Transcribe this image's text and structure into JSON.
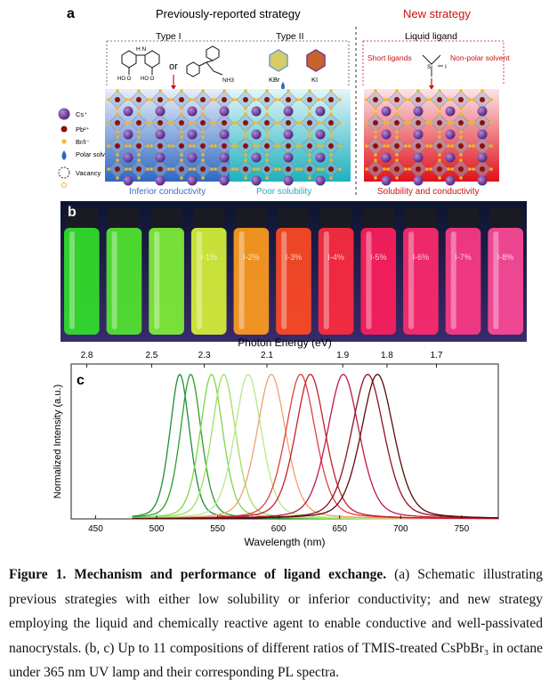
{
  "panel_a": {
    "letter": "a",
    "previous_title": "Previously-reported strategy",
    "new_title": "New strategy",
    "type1": "Type I",
    "type2": "Type II",
    "or_text": "or",
    "kbr": "KBr",
    "ki": "KI",
    "liquid_ligand": "Liquid ligand",
    "short_ligands": "Short ligands",
    "nonpolar_solvent": "Non-polar solvent",
    "si_label": "Si",
    "i_label": "I",
    "hn_label": "H\nN",
    "nh3_label": "NH3",
    "legend": {
      "cs": "Cs⁺",
      "pb": "Pb²⁺",
      "br": "Br/I⁻",
      "polar_solvent": "Polar solvent",
      "vacancy": "Vacancy"
    },
    "inferior_conductivity": "Inferior conductivity",
    "poor_solubility": "Poor solubility",
    "solubility_conductivity": "Solubility and conductivity",
    "colors": {
      "title_new": "#cc1111",
      "inferior": "#3a6fc4",
      "poor": "#2aa7b8",
      "sol": "#cc1111"
    }
  },
  "panel_b": {
    "letter": "b",
    "vials": [
      {
        "color": "#33e02a",
        "label": ""
      },
      {
        "color": "#52e62f",
        "label": ""
      },
      {
        "color": "#7ff037",
        "label": ""
      },
      {
        "color": "#d7f23a",
        "label": "I-1%"
      },
      {
        "color": "#ff9c1e",
        "label": "I-2%"
      },
      {
        "color": "#ff4a23",
        "label": "I-3%"
      },
      {
        "color": "#ff2b3f",
        "label": "I-4%"
      },
      {
        "color": "#ff1e5c",
        "label": "I-5%"
      },
      {
        "color": "#ff2a6e",
        "label": "I-6%"
      },
      {
        "color": "#ff3a86",
        "label": "I-7%"
      },
      {
        "color": "#ff4a98",
        "label": "I-8%"
      }
    ]
  },
  "chart_data": {
    "type": "line",
    "letter": "c",
    "title": "",
    "xlabel": "Wavelength (nm)",
    "ylabel": "Normalized Intensity (a.u.)",
    "x2label": "Photon Energy (eV)",
    "xlim": [
      430,
      780
    ],
    "ylim": [
      0,
      1.05
    ],
    "xticks": [
      450,
      500,
      550,
      600,
      650,
      700,
      750
    ],
    "x2ticks": [
      2.8,
      2.5,
      2.3,
      2.1,
      1.9,
      1.8,
      1.7
    ],
    "series": [
      {
        "peak": 519,
        "fwhm": 20,
        "color": "#1e8c3a"
      },
      {
        "peak": 528,
        "fwhm": 21,
        "color": "#2aa02a"
      },
      {
        "peak": 545,
        "fwhm": 23,
        "color": "#7fd64a"
      },
      {
        "peak": 555,
        "fwhm": 24,
        "color": "#9ee062"
      },
      {
        "peak": 575,
        "fwhm": 27,
        "color": "#b8e88a"
      },
      {
        "peak": 594,
        "fwhm": 29,
        "color": "#f0a070"
      },
      {
        "peak": 618,
        "fwhm": 30,
        "color": "#e04040"
      },
      {
        "peak": 626,
        "fwhm": 30,
        "color": "#c81e2a"
      },
      {
        "peak": 653,
        "fwhm": 32,
        "color": "#c01845"
      },
      {
        "peak": 673,
        "fwhm": 33,
        "color": "#901020"
      },
      {
        "peak": 681,
        "fwhm": 33,
        "color": "#5a0a0a"
      }
    ]
  },
  "caption": {
    "bold": "Figure 1. Mechanism and performance of ligand exchange.",
    "rest": " (a) Schematic illustrating previous strategies with either low solubility or inferior conductivity; and new strategy employing the liquid and chemically reactive agent to enable conductive and well-passivated nanocrystals. (b, c) Up to 11 compositions of different ratios of TMIS-treated CsPbBr₃ in octane under 365 nm UV lamp and their corresponding PL spectra."
  }
}
